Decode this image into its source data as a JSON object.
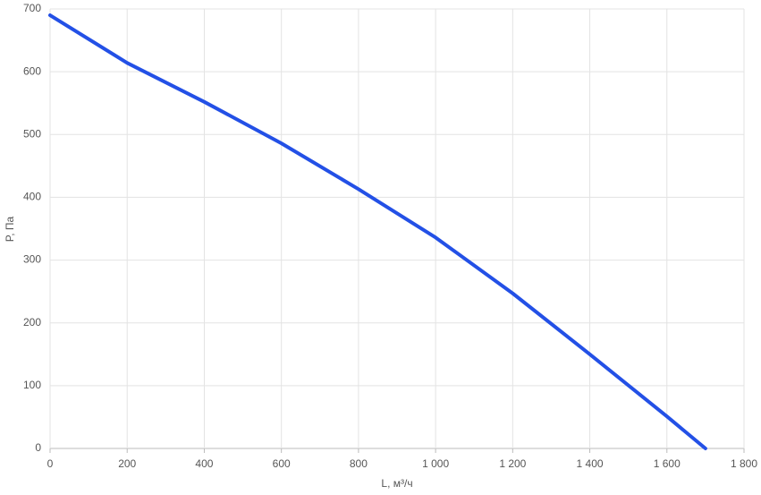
{
  "chart_data": {
    "type": "line",
    "x_label": "L, м³/ч",
    "y_label": "P, Па",
    "x": [
      0,
      200,
      400,
      600,
      800,
      1000,
      1200,
      1400,
      1600,
      1700
    ],
    "values": [
      690,
      614,
      552,
      486,
      413,
      336,
      247,
      150,
      51,
      0
    ],
    "color": "#2350e6",
    "xlim": [
      0,
      1800
    ],
    "xticks": [
      0,
      200,
      400,
      600,
      800,
      {
        "value": 1000,
        "label": "1 000"
      },
      {
        "value": 1200,
        "label": "1 200"
      },
      {
        "value": 1400,
        "label": "1 400"
      },
      {
        "value": 1600,
        "label": "1 600"
      },
      {
        "value": 1800,
        "label": "1 800"
      }
    ],
    "ylim": [
      0,
      700
    ],
    "yticks": [
      0,
      100,
      200,
      300,
      400,
      500,
      600,
      700
    ],
    "grid": true
  }
}
